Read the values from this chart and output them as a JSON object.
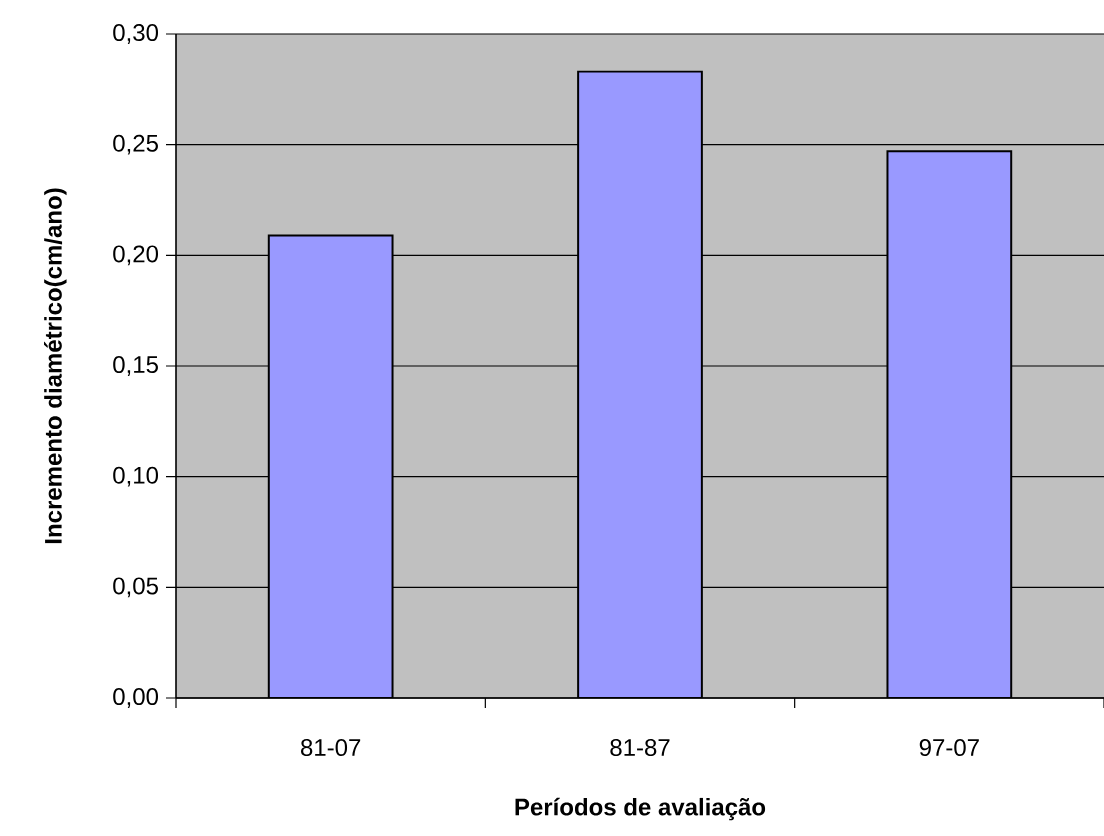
{
  "chart_data": {
    "type": "bar",
    "xlabel": "Períodos de avaliação",
    "ylabel": "Incremento diamétrico(cm/ano)",
    "categories": [
      "81-07",
      "81-87",
      "97-07"
    ],
    "values": [
      0.209,
      0.283,
      0.247
    ],
    "color": "#9999ff",
    "ylim": [
      0,
      0.3
    ],
    "yticks": [
      {
        "value": 0,
        "label": "0,00"
      },
      {
        "value": 0.05,
        "label": "0,05"
      },
      {
        "value": 0.1,
        "label": "0,10"
      },
      {
        "value": 0.15,
        "label": "0,15"
      },
      {
        "value": 0.2,
        "label": "0,20"
      },
      {
        "value": 0.25,
        "label": "0,25"
      },
      {
        "value": 0.3,
        "label": "0,30"
      }
    ],
    "grid": "y"
  }
}
